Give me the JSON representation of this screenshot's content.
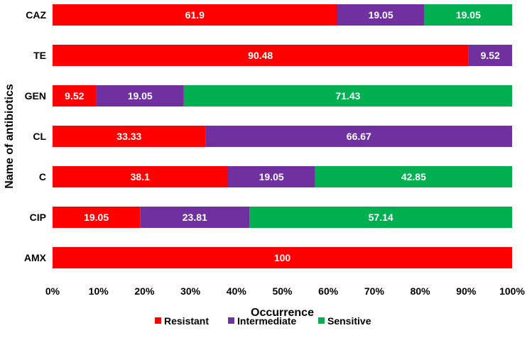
{
  "chart_data": {
    "type": "bar",
    "orientation": "horizontal",
    "stacked": "percent",
    "title": "",
    "xlabel": "Occurrence",
    "ylabel": "Name of antibiotics",
    "xlim": [
      0,
      100
    ],
    "x_ticks": [
      "0%",
      "10%",
      "20%",
      "30%",
      "40%",
      "50%",
      "60%",
      "70%",
      "80%",
      "90%",
      "100%"
    ],
    "categories": [
      "CAZ",
      "TE",
      "GEN",
      "CL",
      "C",
      "CIP",
      "AMX"
    ],
    "series": [
      {
        "name": "Resistant",
        "color": "#ff0000",
        "values": [
          61.9,
          90.48,
          9.52,
          33.33,
          38.1,
          19.05,
          100
        ],
        "labels": [
          "61.9",
          "90.48",
          "9.52",
          "33.33",
          "38.1",
          "19.05",
          "100"
        ]
      },
      {
        "name": "Intermediate",
        "color": "#7030a0",
        "values": [
          19.05,
          9.52,
          19.05,
          66.67,
          19.05,
          23.81,
          0
        ],
        "labels": [
          "19.05",
          "9.52",
          "19.05",
          "66.67",
          "19.05",
          "23.81",
          ""
        ]
      },
      {
        "name": "Sensitive",
        "color": "#00b050",
        "values": [
          19.05,
          0,
          71.43,
          0,
          42.85,
          57.14,
          0
        ],
        "labels": [
          "19.05",
          "",
          "71.43",
          "",
          "42.85",
          "57.14",
          ""
        ]
      }
    ],
    "grid": false,
    "legend_position": "bottom"
  }
}
